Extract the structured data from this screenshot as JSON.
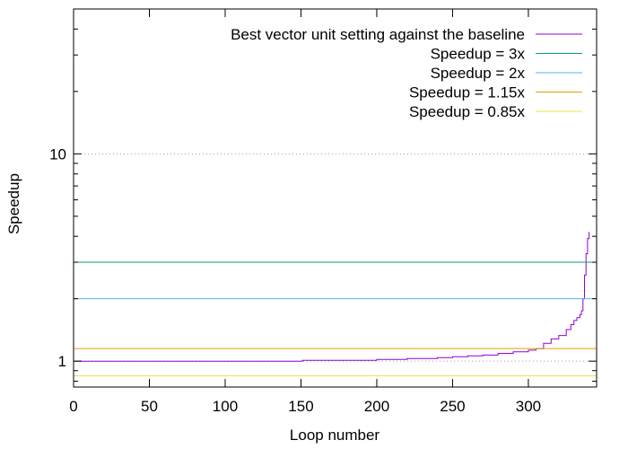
{
  "chart_data": {
    "type": "line",
    "title": "",
    "xlabel": "Loop number",
    "ylabel": "Speedup",
    "xlim": [
      0,
      345
    ],
    "ylim": [
      0.75,
      50
    ],
    "y_scale": "log",
    "grid": "horizontal dotted at y=1 and y=10",
    "legend_position": "top-right",
    "x_ticks": [
      0,
      50,
      100,
      150,
      200,
      250,
      300
    ],
    "y_ticks": [
      1,
      10
    ],
    "series": [
      {
        "name": "Best vector unit setting against the baseline",
        "kind": "line",
        "color": "#9400d3",
        "x": [
          0,
          50,
          100,
          150,
          151,
          180,
          200,
          220,
          240,
          250,
          260,
          270,
          280,
          290,
          300,
          305,
          310,
          315,
          320,
          325,
          328,
          330,
          332,
          334,
          335,
          336,
          337,
          338,
          339,
          340
        ],
        "y": [
          1.0,
          1.0,
          1.0,
          1.0,
          1.01,
          1.01,
          1.02,
          1.03,
          1.04,
          1.05,
          1.06,
          1.07,
          1.09,
          1.11,
          1.13,
          1.15,
          1.22,
          1.28,
          1.33,
          1.42,
          1.5,
          1.57,
          1.62,
          1.68,
          1.75,
          2.0,
          2.6,
          3.3,
          3.9,
          4.2
        ]
      },
      {
        "name": "Speedup = 3x",
        "kind": "hline",
        "color": "#009e73",
        "y": 3
      },
      {
        "name": "Speedup = 2x",
        "kind": "hline",
        "color": "#56b4e9",
        "y": 2
      },
      {
        "name": "Speedup = 1.15x",
        "kind": "hline",
        "color": "#e69f00",
        "y": 1.15
      },
      {
        "name": "Speedup = 0.85x",
        "kind": "hline",
        "color": "#f0e442",
        "y": 0.85
      }
    ]
  }
}
